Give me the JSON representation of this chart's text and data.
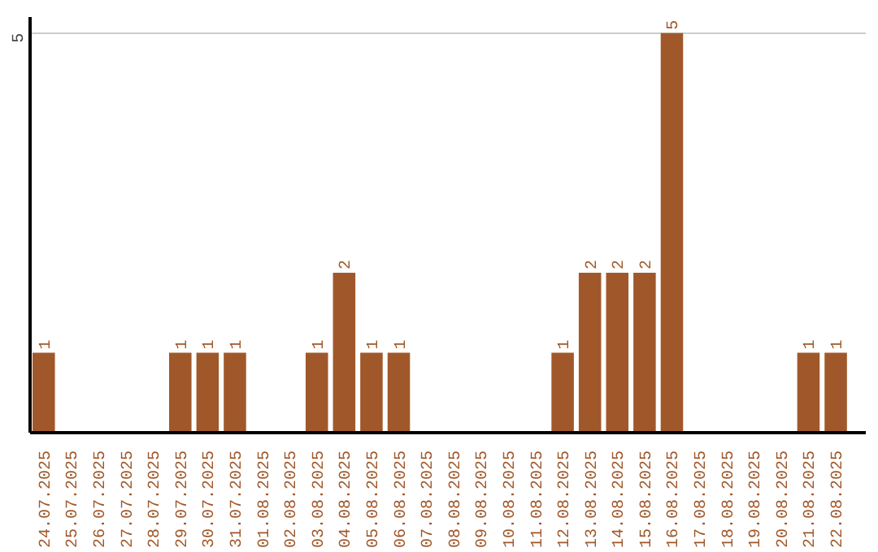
{
  "chart_data": {
    "type": "bar",
    "categories": [
      "24.07.2025",
      "25.07.2025",
      "26.07.2025",
      "27.07.2025",
      "28.07.2025",
      "29.07.2025",
      "30.07.2025",
      "31.07.2025",
      "01.08.2025",
      "02.08.2025",
      "03.08.2025",
      "04.08.2025",
      "05.08.2025",
      "06.08.2025",
      "07.08.2025",
      "08.08.2025",
      "09.08.2025",
      "10.08.2025",
      "11.08.2025",
      "12.08.2025",
      "13.08.2025",
      "14.08.2025",
      "15.08.2025",
      "16.08.2025",
      "17.08.2025",
      "18.08.2025",
      "19.08.2025",
      "20.08.2025",
      "21.08.2025",
      "22.08.2025"
    ],
    "values": [
      1,
      0,
      0,
      0,
      0,
      1,
      1,
      1,
      0,
      0,
      1,
      2,
      1,
      1,
      0,
      0,
      0,
      0,
      0,
      1,
      2,
      2,
      2,
      5,
      0,
      0,
      0,
      0,
      1,
      1
    ],
    "value_labels": [
      "1",
      null,
      null,
      null,
      null,
      "1",
      "1",
      "1",
      null,
      null,
      "1",
      "2",
      "1",
      "1",
      null,
      null,
      null,
      null,
      null,
      "1",
      "2",
      "2",
      "2",
      "5",
      null,
      null,
      null,
      null,
      "1",
      "1"
    ],
    "color": "#a0582a",
    "ylim": [
      0,
      5.2
    ],
    "yticks": [
      5
    ],
    "grid": "y"
  }
}
